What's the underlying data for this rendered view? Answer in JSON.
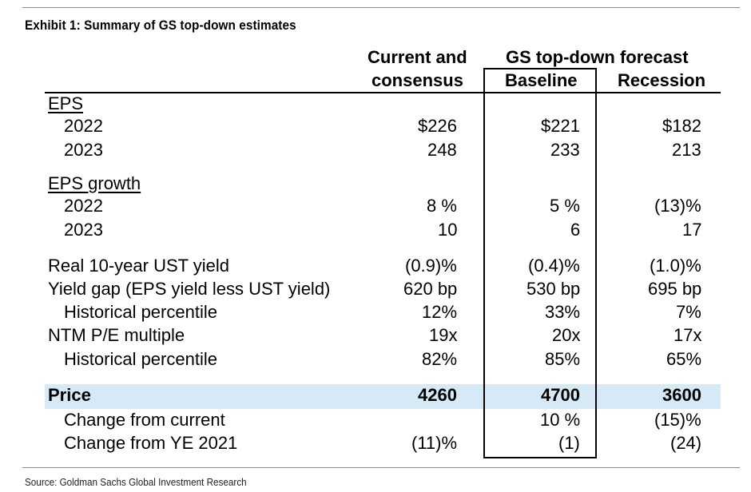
{
  "title": "Exhibit 1: Summary of GS top-down estimates",
  "header": {
    "current_line1": "Current and",
    "current_line2": "consensus",
    "forecast_group": "GS top-down forecast",
    "baseline": "Baseline",
    "recession": "Recession"
  },
  "rows": [
    {
      "label": "EPS",
      "section": true
    },
    {
      "label": "2022",
      "current": "$226",
      "baseline": "$221",
      "recession": "$182"
    },
    {
      "label": "2023",
      "current": "248",
      "baseline": "233",
      "recession": "213"
    },
    {
      "label": "EPS growth",
      "section": true
    },
    {
      "label": "2022",
      "current": "8 %",
      "baseline": "5 %",
      "recession": "(13)%"
    },
    {
      "label": "2023",
      "current": "10",
      "baseline": "6",
      "recession": "17"
    },
    {
      "label": "Real 10-year UST yield",
      "current": "(0.9)%",
      "baseline": "(0.4)%",
      "recession": "(1.0)%"
    },
    {
      "label": "Yield gap (EPS yield less UST yield)",
      "current": "620 bp",
      "baseline": "530 bp",
      "recession": "695 bp"
    },
    {
      "label": "Historical percentile",
      "current": "12%",
      "baseline": "33%",
      "recession": "7%"
    },
    {
      "label": "NTM P/E multiple",
      "current": "19x",
      "baseline": "20x",
      "recession": "17x"
    },
    {
      "label": "Historical percentile",
      "current": "82%",
      "baseline": "85%",
      "recession": "65%"
    },
    {
      "label": "Price",
      "current": "4260",
      "baseline": "4700",
      "recession": "3600"
    },
    {
      "label": "Change from current",
      "current": "",
      "baseline": "10 %",
      "recession": "(15)%"
    },
    {
      "label": "Change from YE 2021",
      "current": "(11)%",
      "baseline": "(1)",
      "recession": "(24)"
    }
  ],
  "source": "Source: Goldman Sachs Global Investment Research",
  "colors": {
    "price_band": "#d6e9f7",
    "rule": "#8c8c8c"
  }
}
